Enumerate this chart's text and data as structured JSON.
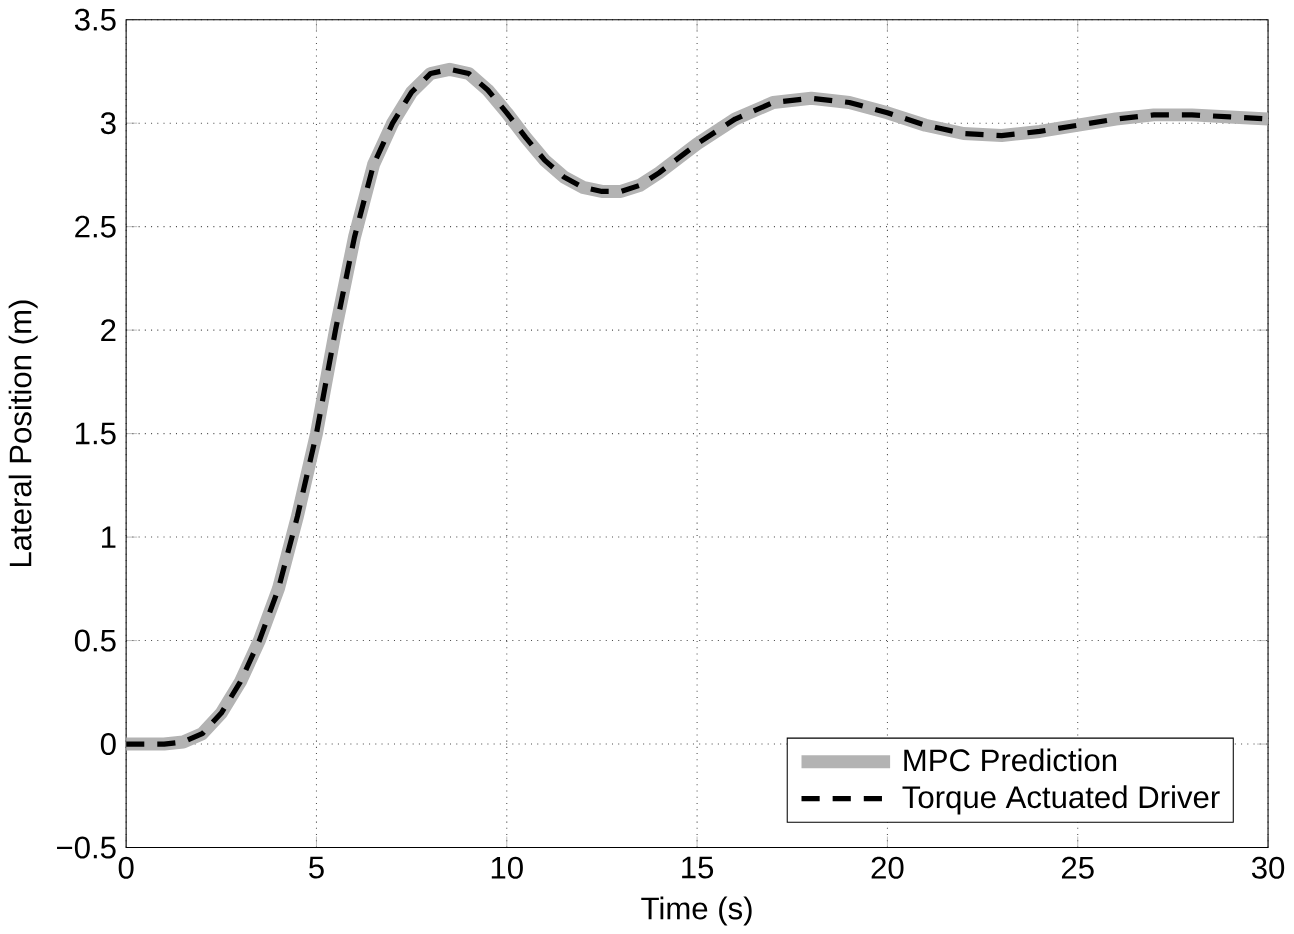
{
  "chart_data": {
    "type": "line",
    "xlabel": "Time (s)",
    "ylabel": "Lateral Position (m)",
    "xlim": [
      0,
      30
    ],
    "xticks": [
      0,
      5,
      10,
      15,
      20,
      25,
      30
    ],
    "ylim": [
      -0.5,
      3.5
    ],
    "yticks": [
      {
        "value": -0.5,
        "label": "−0.5"
      },
      0,
      0.5,
      1,
      1.5,
      2,
      2.5,
      3,
      3.5
    ],
    "grid": true,
    "legend": "bottom right",
    "x": [
      0,
      1,
      1.5,
      2,
      2.5,
      3,
      3.5,
      4,
      4.5,
      5,
      5.5,
      6,
      6.5,
      7,
      7.5,
      8,
      8.5,
      9,
      9.5,
      10,
      10.5,
      11,
      11.5,
      12,
      12.5,
      13,
      13.5,
      14,
      15,
      16,
      17,
      18,
      19,
      20,
      21,
      22,
      23,
      24,
      25,
      26,
      27,
      28,
      29,
      30
    ],
    "series": [
      {
        "name": "MPC Prediction",
        "color": "#b3b3b3",
        "line_style": "solid",
        "values": [
          0,
          0,
          0.01,
          0.05,
          0.15,
          0.3,
          0.5,
          0.75,
          1.1,
          1.5,
          2.0,
          2.45,
          2.8,
          3.0,
          3.15,
          3.24,
          3.26,
          3.24,
          3.16,
          3.05,
          2.93,
          2.82,
          2.74,
          2.69,
          2.67,
          2.67,
          2.7,
          2.76,
          2.9,
          3.02,
          3.1,
          3.12,
          3.1,
          3.05,
          2.99,
          2.95,
          2.94,
          2.96,
          2.99,
          3.02,
          3.04,
          3.04,
          3.03,
          3.02
        ]
      },
      {
        "name": "Torque Actuated Driver",
        "color": "#000000",
        "line_style": "dashed",
        "values": [
          0,
          0,
          0.01,
          0.05,
          0.15,
          0.3,
          0.5,
          0.75,
          1.1,
          1.5,
          2.0,
          2.45,
          2.8,
          3.0,
          3.15,
          3.24,
          3.26,
          3.24,
          3.16,
          3.05,
          2.93,
          2.82,
          2.74,
          2.69,
          2.67,
          2.67,
          2.7,
          2.76,
          2.9,
          3.02,
          3.1,
          3.12,
          3.1,
          3.05,
          2.99,
          2.95,
          2.94,
          2.96,
          2.99,
          3.02,
          3.04,
          3.04,
          3.03,
          3.02
        ]
      }
    ]
  }
}
